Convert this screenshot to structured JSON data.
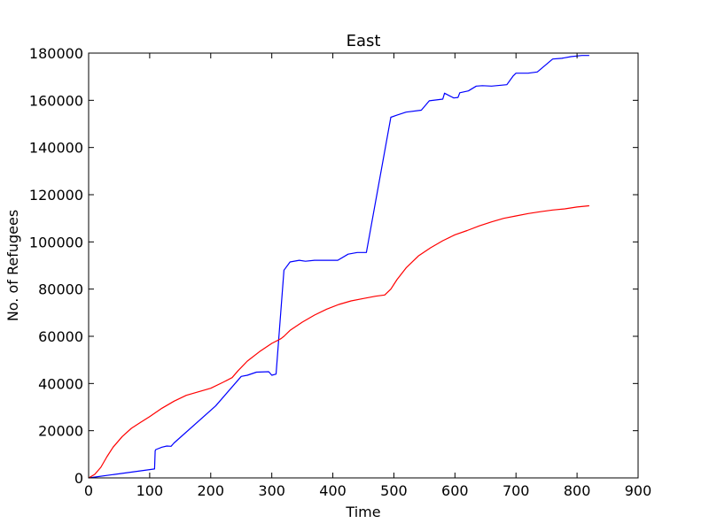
{
  "chart_data": {
    "type": "line",
    "title": "East",
    "xlabel": "Time",
    "ylabel": "No. of Refugees",
    "xlim": [
      0,
      900
    ],
    "ylim": [
      0,
      180000
    ],
    "xticks": [
      0,
      100,
      200,
      300,
      400,
      500,
      600,
      700,
      800,
      900
    ],
    "yticks": [
      0,
      20000,
      40000,
      60000,
      80000,
      100000,
      120000,
      140000,
      160000,
      180000
    ],
    "grid": false,
    "legend": "none",
    "series": [
      {
        "color": "#0000ff",
        "points": [
          [
            0,
            0
          ],
          [
            108,
            3800
          ],
          [
            109,
            11500
          ],
          [
            110,
            12000
          ],
          [
            120,
            13000
          ],
          [
            128,
            13500
          ],
          [
            135,
            13400
          ],
          [
            140,
            14800
          ],
          [
            208,
            30500
          ],
          [
            250,
            43000
          ],
          [
            260,
            43500
          ],
          [
            275,
            44800
          ],
          [
            295,
            45000
          ],
          [
            300,
            43500
          ],
          [
            307,
            44000
          ],
          [
            320,
            88000
          ],
          [
            330,
            91500
          ],
          [
            345,
            92200
          ],
          [
            355,
            91800
          ],
          [
            370,
            92200
          ],
          [
            380,
            92200
          ],
          [
            408,
            92200
          ],
          [
            425,
            94800
          ],
          [
            440,
            95500
          ],
          [
            455,
            95500
          ],
          [
            495,
            152800
          ],
          [
            505,
            153700
          ],
          [
            520,
            155000
          ],
          [
            545,
            155800
          ],
          [
            558,
            159800
          ],
          [
            580,
            160500
          ],
          [
            583,
            163000
          ],
          [
            598,
            161000
          ],
          [
            605,
            161200
          ],
          [
            608,
            163200
          ],
          [
            622,
            164000
          ],
          [
            635,
            166000
          ],
          [
            645,
            166200
          ],
          [
            660,
            166000
          ],
          [
            685,
            166600
          ],
          [
            695,
            170200
          ],
          [
            700,
            171500
          ],
          [
            720,
            171500
          ],
          [
            735,
            172000
          ],
          [
            760,
            177500
          ],
          [
            775,
            177800
          ],
          [
            790,
            178500
          ],
          [
            808,
            179000
          ],
          [
            820,
            179000
          ]
        ]
      },
      {
        "color": "#ff0000",
        "points": [
          [
            0,
            0
          ],
          [
            10,
            1500
          ],
          [
            20,
            4500
          ],
          [
            30,
            9000
          ],
          [
            40,
            13000
          ],
          [
            55,
            17500
          ],
          [
            70,
            21000
          ],
          [
            85,
            23500
          ],
          [
            100,
            26000
          ],
          [
            120,
            29500
          ],
          [
            140,
            32500
          ],
          [
            160,
            35000
          ],
          [
            180,
            36500
          ],
          [
            200,
            38000
          ],
          [
            220,
            40500
          ],
          [
            235,
            42500
          ],
          [
            245,
            45500
          ],
          [
            260,
            49500
          ],
          [
            280,
            53500
          ],
          [
            300,
            57000
          ],
          [
            315,
            59000
          ],
          [
            320,
            60000
          ],
          [
            330,
            62500
          ],
          [
            350,
            66000
          ],
          [
            370,
            69000
          ],
          [
            390,
            71500
          ],
          [
            410,
            73500
          ],
          [
            430,
            75000
          ],
          [
            450,
            76000
          ],
          [
            470,
            77000
          ],
          [
            485,
            77500
          ],
          [
            495,
            80000
          ],
          [
            505,
            84000
          ],
          [
            520,
            89000
          ],
          [
            540,
            94000
          ],
          [
            560,
            97500
          ],
          [
            580,
            100500
          ],
          [
            600,
            103000
          ],
          [
            620,
            104800
          ],
          [
            640,
            106800
          ],
          [
            660,
            108500
          ],
          [
            680,
            110000
          ],
          [
            700,
            111000
          ],
          [
            720,
            112000
          ],
          [
            740,
            112800
          ],
          [
            760,
            113500
          ],
          [
            780,
            114000
          ],
          [
            800,
            114800
          ],
          [
            820,
            115300
          ]
        ]
      }
    ]
  }
}
